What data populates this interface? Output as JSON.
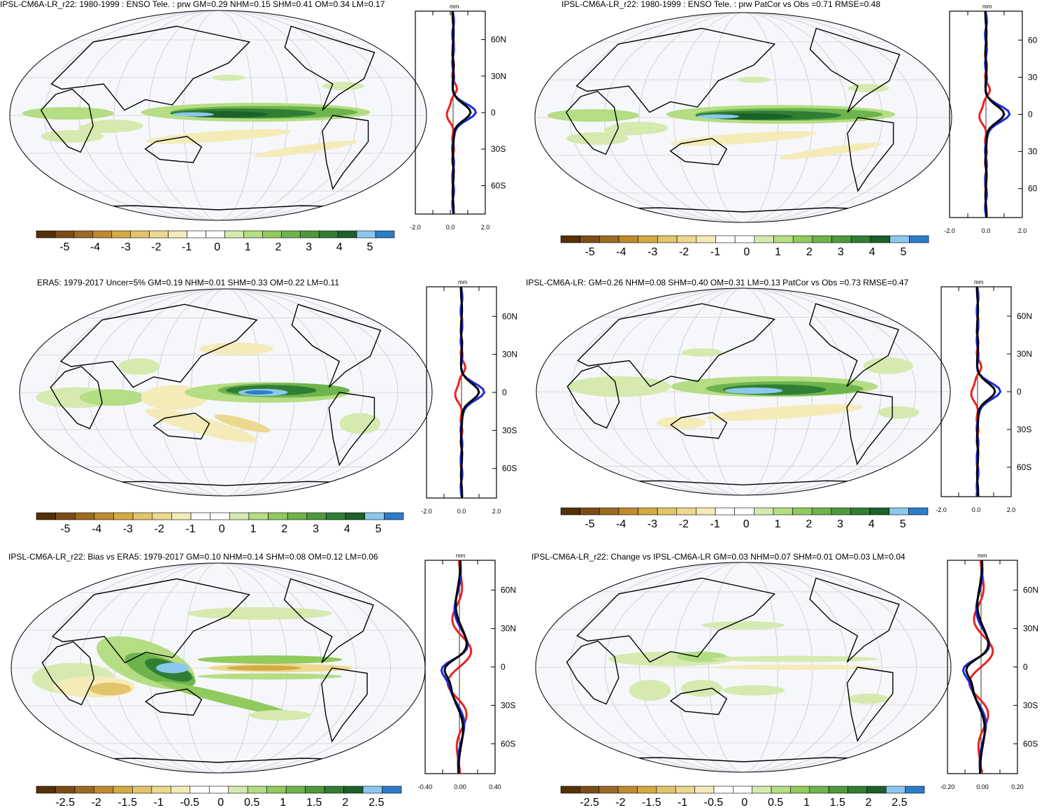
{
  "palette": {
    "full": [
      "#543005",
      "#7b4e17",
      "#9c6a24",
      "#bf8a2e",
      "#d4aa43",
      "#e2c46a",
      "#ecd98f",
      "#f4ebb9",
      "#fff",
      "#fff",
      "#d6eab0",
      "#b5dd84",
      "#91ca5f",
      "#6db44c",
      "#4d9a3c",
      "#2f7e34",
      "#1b6129",
      "#8cc8ee",
      "#2d7cc8"
    ]
  },
  "line_colors": {
    "obs": "#e8241c",
    "model": "#1b2bdc",
    "mean": "#000000"
  },
  "panels": [
    {
      "id": "tl",
      "title": "IPSL-CM6A-LR_r22: 1980-1999 : ENSO Tele. : prw GM=0.29 NHM=0.15 SHM=0.41 OM=0.34 LM=0.17",
      "unit": "mm",
      "lat_labels": [
        "60N",
        "30N",
        "0",
        "30S",
        "60S"
      ],
      "x_ticks": [
        "-2.0",
        "0.0",
        "2.0"
      ],
      "cbar_labels": [
        "-5",
        "-4",
        "-3",
        "-2",
        "-1",
        "0",
        "1",
        "2",
        "3",
        "4",
        "5"
      ]
    },
    {
      "id": "tr",
      "title": "IPSL-CM6A-LR_r22: 1980-1999 : ENSO Tele. : prw PatCor vs Obs =0.71 RMSE=0.48",
      "unit": "mm",
      "lat_labels": [
        "60",
        "30",
        "0",
        "30",
        "60"
      ],
      "x_ticks": [
        "-2.0",
        "0.0",
        "2.0"
      ],
      "cbar_labels": [
        "-5",
        "-4",
        "-3",
        "-2",
        "-1",
        "0",
        "1",
        "2",
        "3",
        "4",
        "5"
      ]
    },
    {
      "id": "ml",
      "title": "ERA5: 1979-2017 Uncer=5% GM=0.19 NHM=0.01 SHM=0.33 OM=0.22 LM=0.11",
      "unit": "mm",
      "lat_labels": [
        "60N",
        "30N",
        "0",
        "30S",
        "60S"
      ],
      "x_ticks": [
        "-2.0",
        "0.0",
        "2.0"
      ],
      "cbar_labels": [
        "-5",
        "-4",
        "-3",
        "-2",
        "-1",
        "0",
        "1",
        "2",
        "3",
        "4",
        "5"
      ]
    },
    {
      "id": "mr",
      "title": "IPSL-CM6A-LR: GM=0.26 NHM=0.08 SHM=0.40 OM=0.31 LM=0.13 PatCor vs Obs =0.73 RMSE=0.47",
      "unit": "mm",
      "lat_labels": [
        "60N",
        "30N",
        "0",
        "30S",
        "60S"
      ],
      "x_ticks": [
        "-2.0",
        "0.0",
        "2.0"
      ],
      "cbar_labels": [
        "-5",
        "-4",
        "-3",
        "-2",
        "-1",
        "0",
        "1",
        "2",
        "3",
        "4",
        "5"
      ]
    },
    {
      "id": "bl",
      "title": "IPSL-CM6A-LR_r22: Bias vs ERA5: 1979-2017 GM=0.10 NHM=0.14 SHM=0.08 OM=0.12 LM=0.06",
      "unit": "mm",
      "lat_labels": [
        "60N",
        "30N",
        "0",
        "30S",
        "60S"
      ],
      "x_ticks": [
        "-0.40",
        "0.00",
        "0.40"
      ],
      "cbar_labels": [
        "-2.5",
        "-2",
        "-1.5",
        "-1",
        "-0.5",
        "0",
        "0.5",
        "1",
        "1.5",
        "2",
        "2.5"
      ]
    },
    {
      "id": "br",
      "title": "IPSL-CM6A-LR_r22: Change vs IPSL-CM6A-LR GM=0.03 NHM=0.07 SHM=0.01 OM=0.03 LM=0.04",
      "unit": "mm",
      "lat_labels": [
        "60N",
        "30N",
        "0",
        "30S",
        "60S"
      ],
      "x_ticks": [
        "-0.20",
        "0.00",
        "0.20"
      ],
      "cbar_labels": [
        "-2.5",
        "-2",
        "-1.5",
        "-1",
        "-0.5",
        "0",
        "0.5",
        "1",
        "1.5",
        "2",
        "2.5"
      ]
    }
  ]
}
